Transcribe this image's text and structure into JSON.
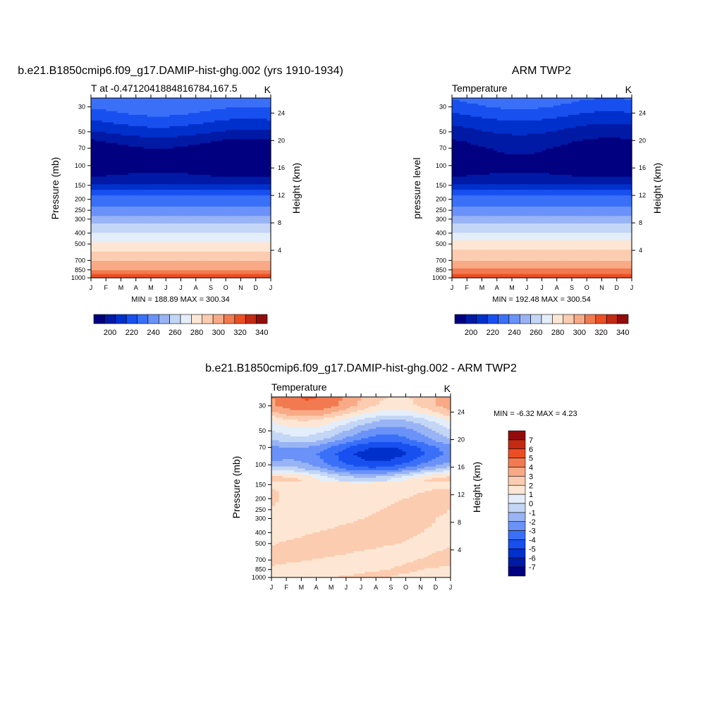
{
  "panels": [
    {
      "id": "model",
      "title": "b.e21.B1850cmip6.f09_g17.DAMIP-hist-ghg.002 (yrs 1910-1934)",
      "left_label": "T at -0.4712041884816784,167.5",
      "units": "K",
      "ylabel": "Pressure (mb)",
      "y2label": "Height (km)",
      "minmax": "MIN = 188.89 MAX = 300.34"
    },
    {
      "id": "obs",
      "title": "ARM TWP2",
      "left_label": "Temperature",
      "units": "K",
      "ylabel": "pressure level",
      "y2label": "Height (km)",
      "minmax": "MIN = 192.48 MAX = 300.54"
    },
    {
      "id": "diff",
      "title": "b.e21.B1850cmip6.f09_g17.DAMIP-hist-ghg.002 - ARM TWP2",
      "left_label": "Temperature",
      "units": "K",
      "ylabel": "Pressure (mb)",
      "y2label": "Height (km)",
      "minmax": "MIN =  -6.32 MAX =   4.23"
    }
  ],
  "chart_data": [
    {
      "type": "heatmap",
      "panel": "model",
      "title": "b.e21.B1850cmip6.f09_g17.DAMIP-hist-ghg.002 (yrs 1910-1934)",
      "x_categories": [
        "J",
        "F",
        "M",
        "A",
        "M",
        "J",
        "J",
        "A",
        "S",
        "O",
        "N",
        "D",
        "J"
      ],
      "pressure_ticks": [
        30,
        50,
        70,
        100,
        150,
        200,
        250,
        300,
        400,
        500,
        700,
        850,
        1000
      ],
      "height_ticks_km": [
        4,
        8,
        12,
        16,
        20,
        24
      ],
      "ylim_mb": [
        1000,
        25
      ],
      "colorbar_levels": [
        195,
        200,
        205,
        210,
        220,
        230,
        240,
        250,
        260,
        270,
        280,
        290,
        295,
        300,
        320,
        340
      ],
      "colorbar_labels": [
        "200",
        "220",
        "240",
        "260",
        "280",
        "300",
        "320",
        "340"
      ],
      "profile": [
        {
          "p": 25,
          "T": 214
        },
        {
          "p": 30,
          "T": 212
        },
        {
          "p": 40,
          "T": 206
        },
        {
          "p": 50,
          "T": 201
        },
        {
          "p": 60,
          "T": 196
        },
        {
          "p": 70,
          "T": 193
        },
        {
          "p": 100,
          "T": 192
        },
        {
          "p": 130,
          "T": 196
        },
        {
          "p": 150,
          "T": 201
        },
        {
          "p": 200,
          "T": 213
        },
        {
          "p": 250,
          "T": 224
        },
        {
          "p": 300,
          "T": 235
        },
        {
          "p": 400,
          "T": 251
        },
        {
          "p": 500,
          "T": 263
        },
        {
          "p": 600,
          "T": 272
        },
        {
          "p": 700,
          "T": 279
        },
        {
          "p": 850,
          "T": 290
        },
        {
          "p": 1000,
          "T": 300
        }
      ],
      "min": 188.89,
      "max": 300.34
    },
    {
      "type": "heatmap",
      "panel": "obs",
      "title": "ARM TWP2",
      "x_categories": [
        "J",
        "F",
        "M",
        "A",
        "M",
        "J",
        "J",
        "A",
        "S",
        "O",
        "N",
        "D",
        "J"
      ],
      "pressure_ticks": [
        30,
        50,
        70,
        100,
        150,
        200,
        250,
        300,
        400,
        500,
        700,
        850,
        1000
      ],
      "height_ticks_km": [
        4,
        8,
        12,
        16,
        20,
        24
      ],
      "ylim_mb": [
        1000,
        25
      ],
      "colorbar_levels": [
        195,
        200,
        205,
        210,
        220,
        230,
        240,
        250,
        260,
        270,
        280,
        290,
        295,
        300,
        320,
        340
      ],
      "colorbar_labels": [
        "200",
        "220",
        "240",
        "260",
        "280",
        "300",
        "320",
        "340"
      ],
      "profile": [
        {
          "p": 25,
          "T": 212
        },
        {
          "p": 30,
          "T": 209
        },
        {
          "p": 40,
          "T": 203
        },
        {
          "p": 50,
          "T": 199
        },
        {
          "p": 60,
          "T": 196
        },
        {
          "p": 70,
          "T": 194
        },
        {
          "p": 100,
          "T": 192
        },
        {
          "p": 130,
          "T": 196
        },
        {
          "p": 150,
          "T": 201
        },
        {
          "p": 200,
          "T": 213
        },
        {
          "p": 250,
          "T": 224
        },
        {
          "p": 300,
          "T": 235
        },
        {
          "p": 400,
          "T": 251
        },
        {
          "p": 500,
          "T": 264
        },
        {
          "p": 600,
          "T": 273
        },
        {
          "p": 700,
          "T": 280
        },
        {
          "p": 850,
          "T": 291
        },
        {
          "p": 1000,
          "T": 300
        }
      ],
      "min": 192.48,
      "max": 300.54
    },
    {
      "type": "heatmap",
      "panel": "diff",
      "title": "b.e21.B1850cmip6.f09_g17.DAMIP-hist-ghg.002 - ARM TWP2",
      "x_categories": [
        "J",
        "F",
        "M",
        "A",
        "M",
        "J",
        "J",
        "A",
        "S",
        "O",
        "N",
        "D",
        "J"
      ],
      "pressure_ticks": [
        30,
        50,
        70,
        100,
        150,
        200,
        250,
        300,
        400,
        500,
        700,
        850,
        1000
      ],
      "height_ticks_km": [
        4,
        8,
        12,
        16,
        20,
        24
      ],
      "ylim_mb": [
        1000,
        25
      ],
      "colorbar_levels": [
        -8,
        -7,
        -6,
        -5,
        -4,
        -3,
        -2,
        -1,
        0,
        1,
        2,
        3,
        4,
        5,
        6,
        7
      ],
      "colorbar_labels": [
        "7",
        "6",
        "5",
        "4",
        "3",
        "2",
        "1",
        "0",
        "-1",
        "-2",
        "-3",
        "-4",
        "-5",
        "-6",
        "-7"
      ],
      "profile": [
        {
          "p": 25,
          "T": 2.5
        },
        {
          "p": 30,
          "T": 2.2
        },
        {
          "p": 35,
          "T": 1.0
        },
        {
          "p": 40,
          "T": -0.5
        },
        {
          "p": 50,
          "T": -2.0
        },
        {
          "p": 60,
          "T": -3.0
        },
        {
          "p": 70,
          "T": -4.5
        },
        {
          "p": 80,
          "T": -5.0
        },
        {
          "p": 90,
          "T": -4.6
        },
        {
          "p": 100,
          "T": -4.0
        },
        {
          "p": 110,
          "T": -3.0
        },
        {
          "p": 120,
          "T": -1.5
        },
        {
          "p": 130,
          "T": -0.3
        },
        {
          "p": 150,
          "T": 0.6
        },
        {
          "p": 200,
          "T": 0.8
        },
        {
          "p": 300,
          "T": 0.9
        },
        {
          "p": 400,
          "T": 1.1
        },
        {
          "p": 500,
          "T": 1.2
        },
        {
          "p": 700,
          "T": 0.9
        },
        {
          "p": 850,
          "T": 0.7
        },
        {
          "p": 1000,
          "T": 0.8
        }
      ],
      "min": -6.32,
      "max": 4.23
    }
  ]
}
